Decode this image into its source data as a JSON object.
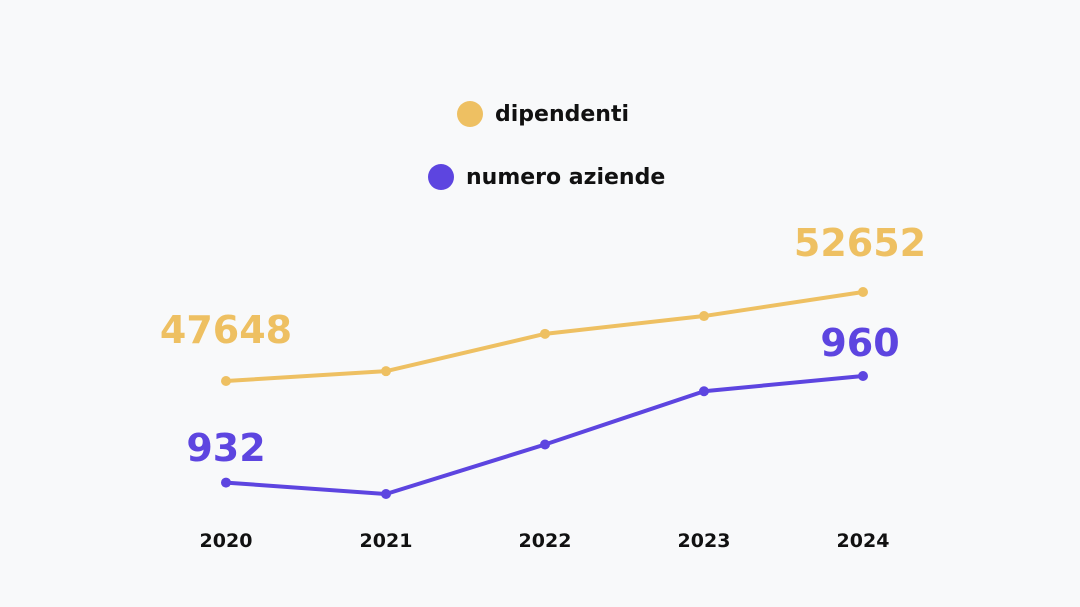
{
  "chart_data": {
    "type": "line",
    "categories": [
      "2020",
      "2021",
      "2022",
      "2023",
      "2024"
    ],
    "series": [
      {
        "name": "dipendenti",
        "color": "#eec062",
        "values": [
          47648,
          48200,
          50300,
          51300,
          52652
        ],
        "labels": {
          "first": "47648",
          "last": "52652"
        }
      },
      {
        "name": "numero aziende",
        "color": "#5d45e0",
        "values": [
          932,
          929,
          942,
          956,
          960
        ],
        "labels": {
          "first": "932",
          "last": "960"
        }
      }
    ],
    "grid": false,
    "legend_position": "top-center"
  }
}
